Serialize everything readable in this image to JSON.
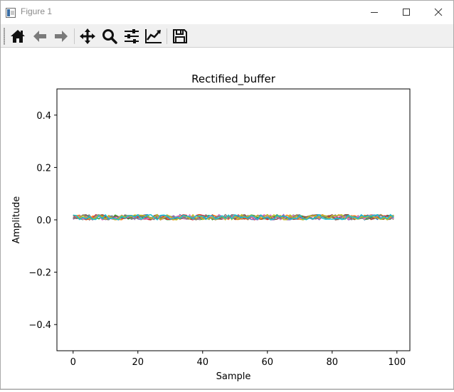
{
  "window": {
    "title": "Figure 1",
    "controls": {
      "minimize": "minimize-icon",
      "maximize": "maximize-icon",
      "close": "close-icon"
    }
  },
  "toolbar": {
    "buttons": [
      {
        "name": "home",
        "icon": "home-icon"
      },
      {
        "name": "back",
        "icon": "arrow-left-icon"
      },
      {
        "name": "forward",
        "icon": "arrow-right-icon"
      },
      {
        "name": "pan",
        "icon": "move-icon"
      },
      {
        "name": "zoom",
        "icon": "magnifier-icon"
      },
      {
        "name": "configure-subplots",
        "icon": "sliders-icon"
      },
      {
        "name": "edit-axis",
        "icon": "line-chart-icon"
      },
      {
        "name": "save",
        "icon": "floppy-disk-icon"
      }
    ]
  },
  "chart_data": {
    "type": "line",
    "title": "Rectified_buffer",
    "xlabel": "Sample",
    "ylabel": "Amplitude",
    "xlim": [
      -5,
      104
    ],
    "ylim": [
      -0.5,
      0.5
    ],
    "xticks": [
      0,
      20,
      40,
      60,
      80,
      100
    ],
    "ytick_values": [
      -0.4,
      -0.2,
      0.0,
      0.2,
      0.4
    ],
    "ytick_labels": [
      "−0.4",
      "−0.2",
      "0.0",
      "0.2",
      "0.4"
    ],
    "grid": false,
    "legend": "none",
    "series_count": 10,
    "x_range": [
      0,
      99
    ],
    "series_level_range": [
      0.0,
      0.02
    ],
    "colors": [
      "#1f77b4",
      "#ff7f0e",
      "#2ca02c",
      "#d62728",
      "#9467bd",
      "#8c564b",
      "#e377c2",
      "#7f7f7f",
      "#bcbd22",
      "#17becf"
    ]
  }
}
